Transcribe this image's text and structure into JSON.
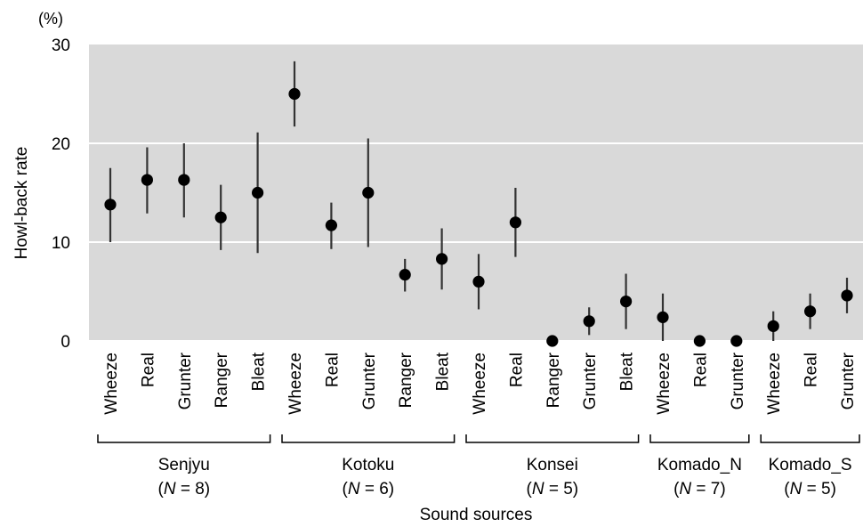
{
  "chart_data": {
    "type": "scatter",
    "ylabel": "Howl-back rate",
    "xlabel": "Sound sources",
    "yunit": "(%)",
    "ylim": [
      0,
      30
    ],
    "yticks": [
      "0",
      "10",
      "20",
      "30"
    ],
    "ytick_values": [
      0,
      10,
      20,
      30
    ],
    "grid": true,
    "colors": {
      "plot_background": "#d9d9d9",
      "gridline": "#ffffff",
      "marker": "#000000",
      "errorbar": "#333333"
    },
    "groups": [
      {
        "name": "Senjyu",
        "n_label": "(N = 8)",
        "n_prefix": "(",
        "n_symbol": "N",
        "n_suffix": " = 8)",
        "points": [
          {
            "category": "Wheeze",
            "value": 13.8,
            "lower": 10.0,
            "upper": 17.5
          },
          {
            "category": "Real",
            "value": 16.3,
            "lower": 12.9,
            "upper": 19.6
          },
          {
            "category": "Grunter",
            "value": 16.3,
            "lower": 12.5,
            "upper": 20.0
          },
          {
            "category": "Ranger",
            "value": 12.5,
            "lower": 9.2,
            "upper": 15.8
          },
          {
            "category": "Bleat",
            "value": 15.0,
            "lower": 8.9,
            "upper": 21.1
          }
        ]
      },
      {
        "name": "Kotoku",
        "n_label": "(N = 6)",
        "n_prefix": "(",
        "n_symbol": "N",
        "n_suffix": " = 6)",
        "points": [
          {
            "category": "Wheeze",
            "value": 25.0,
            "lower": 21.7,
            "upper": 28.3
          },
          {
            "category": "Real",
            "value": 11.7,
            "lower": 9.3,
            "upper": 14.0
          },
          {
            "category": "Grunter",
            "value": 15.0,
            "lower": 9.5,
            "upper": 20.5
          },
          {
            "category": "Ranger",
            "value": 6.7,
            "lower": 5.0,
            "upper": 8.3
          },
          {
            "category": "Bleat",
            "value": 8.3,
            "lower": 5.2,
            "upper": 11.4
          }
        ]
      },
      {
        "name": "Konsei",
        "n_label": "(N = 5)",
        "n_prefix": "(",
        "n_symbol": "N",
        "n_suffix": " = 5)",
        "points": [
          {
            "category": "Wheeze",
            "value": 6.0,
            "lower": 3.2,
            "upper": 8.8
          },
          {
            "category": "Real",
            "value": 12.0,
            "lower": 8.5,
            "upper": 15.5
          },
          {
            "category": "Ranger",
            "value": 0.0,
            "lower": 0.0,
            "upper": 0.0
          },
          {
            "category": "Grunter",
            "value": 2.0,
            "lower": 0.6,
            "upper": 3.4
          },
          {
            "category": "Bleat",
            "value": 4.0,
            "lower": 1.2,
            "upper": 6.8
          }
        ]
      },
      {
        "name": "Komado_N",
        "n_label": "(N = 7)",
        "n_prefix": "(",
        "n_symbol": "N",
        "n_suffix": " = 7)",
        "points": [
          {
            "category": "Wheeze",
            "value": 2.4,
            "lower": 0.0,
            "upper": 4.8
          },
          {
            "category": "Real",
            "value": 0.0,
            "lower": 0.0,
            "upper": 0.0
          },
          {
            "category": "Grunter",
            "value": 0.0,
            "lower": 0.0,
            "upper": 0.0
          }
        ]
      },
      {
        "name": "Komado_S",
        "n_label": "(N = 5)",
        "n_prefix": "(",
        "n_symbol": "N",
        "n_suffix": " = 5)",
        "points": [
          {
            "category": "Wheeze",
            "value": 1.5,
            "lower": 0.0,
            "upper": 3.0
          },
          {
            "category": "Real",
            "value": 3.0,
            "lower": 1.2,
            "upper": 4.8
          },
          {
            "category": "Grunter",
            "value": 4.6,
            "lower": 2.8,
            "upper": 6.4
          }
        ]
      }
    ]
  }
}
